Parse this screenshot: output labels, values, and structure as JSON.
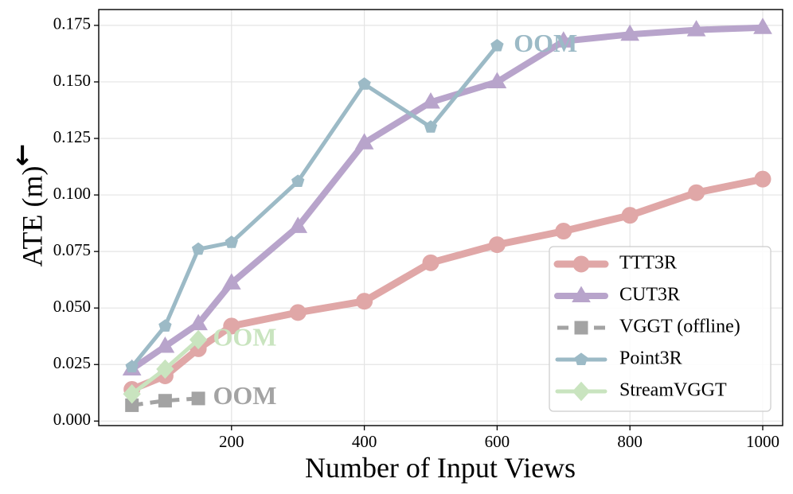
{
  "chart_data": {
    "type": "line",
    "title": "",
    "xlabel": "Number of Input Views",
    "ylabel": "ATE (m)",
    "ylabel_arrow": "↓",
    "xlim": [
      0,
      1030
    ],
    "ylim": [
      -0.002,
      0.182
    ],
    "xticks": [
      200,
      400,
      600,
      800,
      1000
    ],
    "xtick_labels": [
      "200",
      "400",
      "600",
      "800",
      "1000"
    ],
    "yticks": [
      0.0,
      0.025,
      0.05,
      0.075,
      0.1,
      0.125,
      0.15,
      0.175
    ],
    "ytick_labels": [
      "0.000",
      "0.025",
      "0.050",
      "0.075",
      "0.100",
      "0.125",
      "0.150",
      "0.175"
    ],
    "grid": true,
    "legend_position": "lower-right",
    "series": [
      {
        "name": "TTT3R",
        "color": "#e0a7a7",
        "marker": "circle",
        "dash": "solid",
        "x": [
          50,
          100,
          150,
          200,
          300,
          400,
          500,
          600,
          700,
          800,
          900,
          1000
        ],
        "y": [
          0.014,
          0.02,
          0.032,
          0.042,
          0.048,
          0.053,
          0.07,
          0.078,
          0.084,
          0.091,
          0.101,
          0.107
        ]
      },
      {
        "name": "CUT3R",
        "color": "#b8a4cb",
        "marker": "triangle",
        "dash": "solid",
        "x": [
          50,
          100,
          150,
          200,
          300,
          400,
          500,
          600,
          700,
          800,
          900,
          1000
        ],
        "y": [
          0.023,
          0.033,
          0.043,
          0.061,
          0.086,
          0.123,
          0.141,
          0.15,
          0.168,
          0.171,
          0.173,
          0.174
        ]
      },
      {
        "name": "VGGT (offline)",
        "color": "#a3a3a3",
        "marker": "square",
        "dash": "dashed",
        "x": [
          50,
          100,
          150
        ],
        "y": [
          0.007,
          0.009,
          0.01
        ]
      },
      {
        "name": "Point3R",
        "color": "#9cbac6",
        "marker": "pentagon",
        "dash": "solid",
        "x": [
          50,
          100,
          150,
          200,
          300,
          400,
          500,
          600
        ],
        "y": [
          0.024,
          0.042,
          0.076,
          0.079,
          0.106,
          0.149,
          0.13,
          0.166
        ]
      },
      {
        "name": "StreamVGGT",
        "color": "#c9e4bf",
        "marker": "diamond",
        "dash": "solid",
        "x": [
          50,
          100,
          150
        ],
        "y": [
          0.012,
          0.023,
          0.036
        ]
      }
    ],
    "annotations": [
      {
        "text": "OOM",
        "x": 625,
        "y": 0.166,
        "color": "#9cbac6"
      },
      {
        "text": "OOM",
        "x": 172,
        "y": 0.036,
        "color": "#c9e4bf"
      },
      {
        "text": "OOM",
        "x": 172,
        "y": 0.01,
        "color": "#a3a3a3"
      }
    ]
  }
}
